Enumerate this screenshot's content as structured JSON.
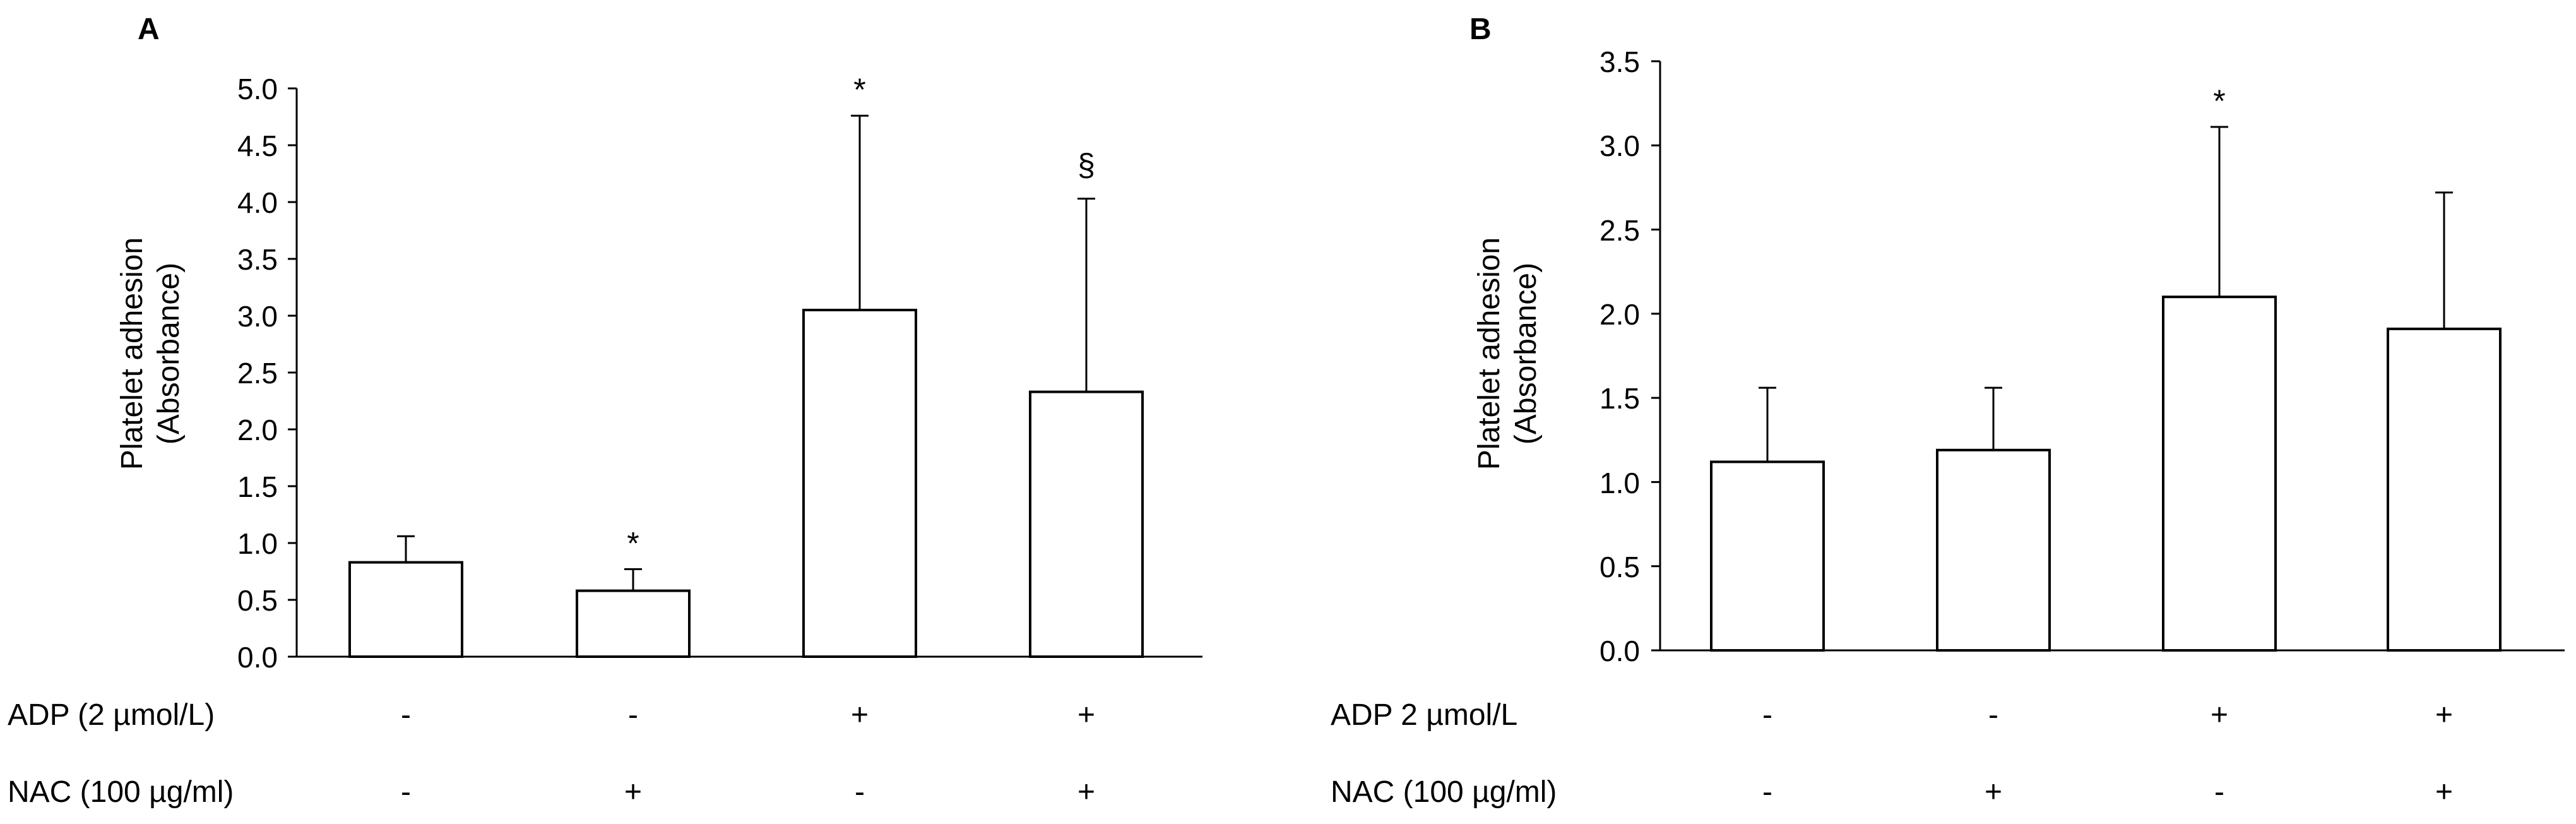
{
  "chart_data": [
    {
      "type": "bar",
      "panel_label": "A",
      "ylabel_line1": "Platelet adhesion",
      "ylabel_line2": "(Absorbance)",
      "ylim": [
        0,
        5.0
      ],
      "yticks": [
        "0.0",
        "0.5",
        "1.0",
        "1.5",
        "2.0",
        "2.5",
        "3.0",
        "3.5",
        "4.0",
        "4.5",
        "5.0"
      ],
      "values": [
        0.83,
        0.58,
        3.05,
        2.33
      ],
      "errors": [
        0.23,
        0.19,
        1.71,
        1.7
      ],
      "annotations": [
        "",
        "*",
        "*",
        "§"
      ],
      "rows": [
        {
          "label": "ADP (2 µmol/L)",
          "signs": [
            "-",
            "-",
            "+",
            "+"
          ]
        },
        {
          "label": "NAC (100 µg/ml)",
          "signs": [
            "-",
            "+",
            "-",
            "+"
          ]
        }
      ]
    },
    {
      "type": "bar",
      "panel_label": "B",
      "ylabel_line1": "Platelet adhesion",
      "ylabel_line2": "(Absorbance)",
      "ylim": [
        0,
        3.5
      ],
      "yticks": [
        "0.0",
        "0.5",
        "1.0",
        "1.5",
        "2.0",
        "2.5",
        "3.0",
        "3.5"
      ],
      "values": [
        1.12,
        1.19,
        2.1,
        1.91
      ],
      "errors": [
        0.44,
        0.37,
        1.01,
        0.81
      ],
      "annotations": [
        "",
        "",
        "*",
        ""
      ],
      "rows": [
        {
          "label": "ADP 2 µmol/L",
          "signs": [
            "-",
            "-",
            "+",
            "+"
          ]
        },
        {
          "label": "NAC (100 µg/ml)",
          "signs": [
            "-",
            "+",
            "-",
            "+"
          ]
        }
      ]
    }
  ]
}
